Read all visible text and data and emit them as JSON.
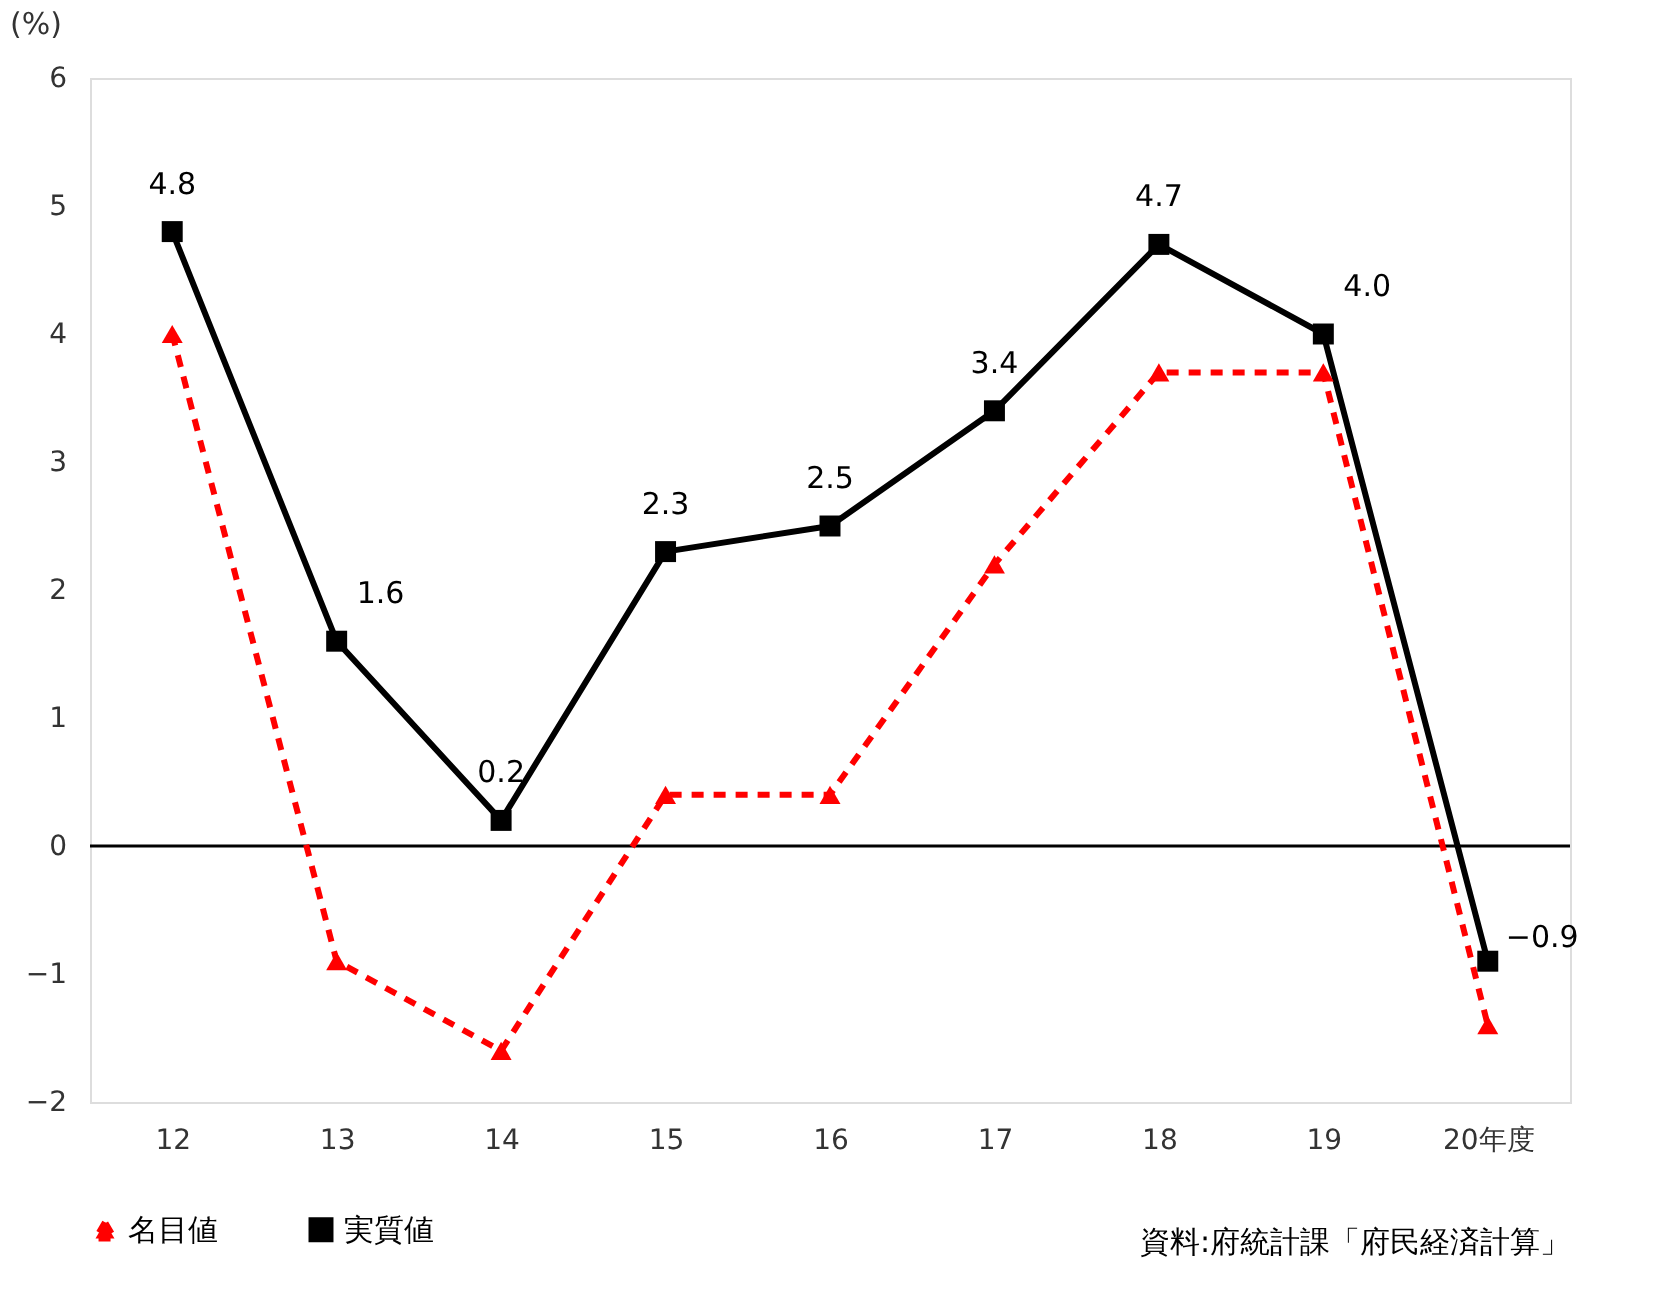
{
  "chart_data": {
    "type": "line",
    "ylabel": "(%)",
    "categories": [
      "12",
      "13",
      "14",
      "15",
      "16",
      "17",
      "18",
      "19",
      "20年度"
    ],
    "series": [
      {
        "name": "名目値",
        "color": "#ff0000",
        "marker": "triangle",
        "line_style": "dashed",
        "values": [
          4.0,
          -0.9,
          -1.6,
          0.4,
          0.4,
          2.2,
          3.7,
          3.7,
          -1.4
        ]
      },
      {
        "name": "実質値",
        "color": "#000000",
        "marker": "square",
        "line_style": "solid",
        "values": [
          4.8,
          1.6,
          0.2,
          2.3,
          2.5,
          3.4,
          4.7,
          4.0,
          -0.9
        ],
        "value_labels": [
          "4.8",
          "1.6",
          "0.2",
          "2.3",
          "2.5",
          "3.4",
          "4.7",
          "4.0",
          "−0.9"
        ]
      }
    ],
    "ylim": [
      -2,
      6
    ],
    "yticks": [
      {
        "value": -2,
        "label": "−2"
      },
      {
        "value": -1,
        "label": "−1"
      },
      0,
      1,
      2,
      3,
      4,
      5,
      6
    ],
    "ref_lines": [
      {
        "axis": "y",
        "value": 0,
        "color": "#000000"
      }
    ],
    "grid": false,
    "legend": "bottom left",
    "annotations": [
      "資料:府統計課「府民経済計算」"
    ]
  }
}
